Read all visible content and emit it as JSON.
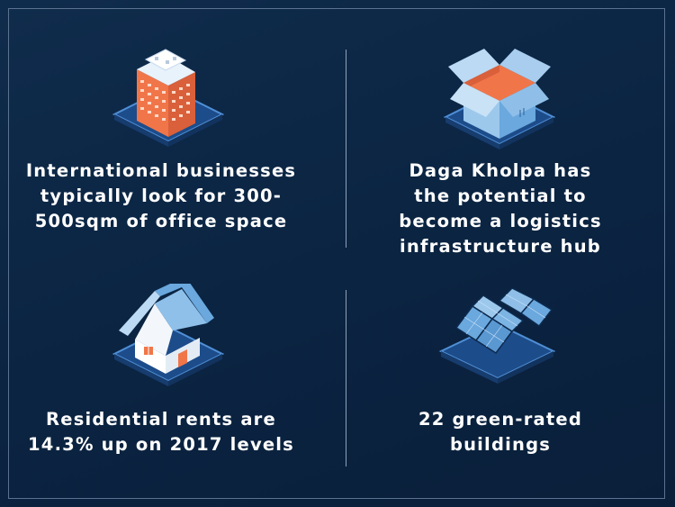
{
  "facts": [
    {
      "text_line1": "International businesses",
      "text_line2": "typically look for 300-",
      "text_line3": "500sqm of office space",
      "icon": "office-building-icon"
    },
    {
      "text_line1": "Daga Kholpa has",
      "text_line2": "the potential to",
      "text_line3": "become a logistics",
      "text_line4": "infrastructure hub",
      "icon": "open-box-icon"
    },
    {
      "text_line1": "Residential rents are",
      "text_line2": "14.3% up on 2017 levels",
      "icon": "house-icon"
    },
    {
      "text_line1": "22 green-rated",
      "text_line2": "buildings",
      "icon": "solar-panels-icon"
    }
  ],
  "colors": {
    "background": "#0b2543",
    "text": "#ffffff",
    "accent_orange": "#f0764a",
    "accent_blue": "#5aa4de"
  }
}
